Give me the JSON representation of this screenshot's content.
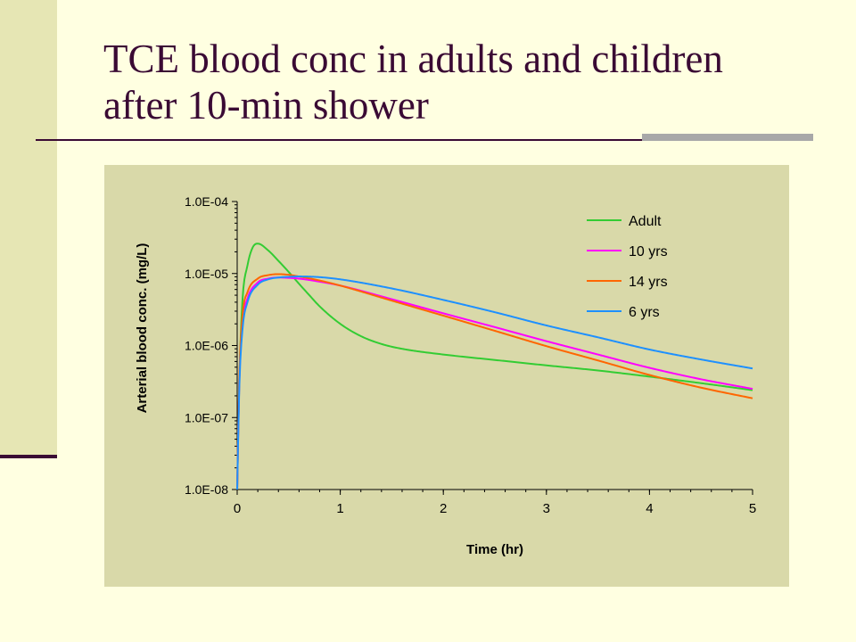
{
  "slide": {
    "title_line1": "TCE blood conc in adults and children",
    "title_line2": "after 10-min shower"
  },
  "colors": {
    "background": "#FFFFE1",
    "left_bar": "#E6E6B4",
    "accent_dark": "#3A0A34",
    "accent_gray": "#A8A8A8",
    "plot_bg": "#D9D9A9"
  },
  "chart_data": {
    "type": "line",
    "title": "",
    "xlabel": "Time (hr)",
    "ylabel": "Arterial blood conc. (mg/L)",
    "xlim": [
      0,
      5
    ],
    "ylim": [
      1e-08,
      0.0001
    ],
    "y_scale": "log",
    "x_ticks": [
      "0",
      "1",
      "2",
      "3",
      "4",
      "5"
    ],
    "y_ticks": [
      "1.0E-08",
      "1.0E-07",
      "1.0E-06",
      "1.0E-05",
      "1.0E-04"
    ],
    "grid": false,
    "legend_position": "top-right",
    "series": [
      {
        "name": "Adult",
        "color": "#33CC33",
        "x": [
          0.0,
          0.02,
          0.05,
          0.1,
          0.15,
          0.2,
          0.3,
          0.4,
          0.5,
          0.6,
          0.7,
          0.8,
          1.0,
          1.2,
          1.4,
          1.6,
          2.0,
          2.5,
          3.0,
          3.5,
          4.0,
          4.5,
          5.0
        ],
        "y": [
          1e-08,
          3e-07,
          4e-06,
          1.3e-05,
          2.3e-05,
          2.6e-05,
          2.1e-05,
          1.5e-05,
          1.05e-05,
          7.2e-06,
          5e-06,
          3.5e-06,
          2e-06,
          1.35e-06,
          1.05e-06,
          9e-07,
          7.5e-07,
          6.3e-07,
          5.3e-07,
          4.5e-07,
          3.7e-07,
          3e-07,
          2.4e-07
        ]
      },
      {
        "name": "10 yrs",
        "color": "#FF00FF",
        "x": [
          0.0,
          0.02,
          0.05,
          0.1,
          0.2,
          0.3,
          0.4,
          0.5,
          0.6,
          0.8,
          1.0,
          1.5,
          2.0,
          2.5,
          3.0,
          3.5,
          4.0,
          4.5,
          5.0
        ],
        "y": [
          1e-08,
          3e-07,
          2e-06,
          4.5e-06,
          7.5e-06,
          8.5e-06,
          8.8e-06,
          8.7e-06,
          8.5e-06,
          7.7e-06,
          6.8e-06,
          4.4e-06,
          2.8e-06,
          1.8e-06,
          1.15e-06,
          7.5e-07,
          4.9e-07,
          3.4e-07,
          2.5e-07
        ]
      },
      {
        "name": "14 yrs",
        "color": "#FF6600",
        "x": [
          0.0,
          0.02,
          0.05,
          0.1,
          0.2,
          0.3,
          0.4,
          0.5,
          0.6,
          0.8,
          1.0,
          1.5,
          2.0,
          2.5,
          3.0,
          3.5,
          4.0,
          4.5,
          5.0
        ],
        "y": [
          1e-08,
          3.5e-07,
          2.5e-06,
          5.5e-06,
          8.5e-06,
          9.5e-06,
          9.8e-06,
          9.6e-06,
          9.1e-06,
          8e-06,
          6.8e-06,
          4.2e-06,
          2.6e-06,
          1.6e-06,
          9.8e-07,
          6.2e-07,
          3.9e-07,
          2.6e-07,
          1.85e-07
        ]
      },
      {
        "name": "6 yrs",
        "color": "#1E90FF",
        "x": [
          0.0,
          0.02,
          0.05,
          0.1,
          0.2,
          0.3,
          0.4,
          0.5,
          0.6,
          0.8,
          1.0,
          1.5,
          2.0,
          2.5,
          3.0,
          3.5,
          4.0,
          4.5,
          5.0
        ],
        "y": [
          1e-08,
          2.5e-07,
          1.6e-06,
          4e-06,
          7e-06,
          8.3e-06,
          8.8e-06,
          9e-06,
          9.1e-06,
          8.9e-06,
          8.3e-06,
          6.2e-06,
          4.3e-06,
          2.9e-06,
          1.9e-06,
          1.3e-06,
          8.8e-07,
          6.4e-07,
          4.8e-07
        ]
      }
    ]
  }
}
